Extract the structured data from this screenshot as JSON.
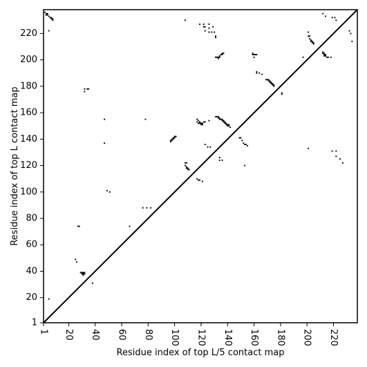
{
  "chart_data": {
    "type": "scatter",
    "title": "",
    "xlabel": "Residue index of top L/5 contact map",
    "ylabel": "Residue index of top L contact map",
    "xlim": [
      1,
      238
    ],
    "ylim": [
      1,
      238
    ],
    "x_ticks": [
      1,
      20,
      40,
      60,
      80,
      100,
      120,
      140,
      160,
      180,
      200,
      220
    ],
    "y_ticks": [
      1,
      20,
      40,
      60,
      80,
      100,
      120,
      140,
      160,
      180,
      200,
      220
    ],
    "grid": false,
    "diagonal_line": true,
    "marker_color": "#000000",
    "points": [
      [
        2,
        236
      ],
      [
        3,
        235
      ],
      [
        4,
        235
      ],
      [
        3,
        234
      ],
      [
        4,
        234
      ],
      [
        5,
        233
      ],
      [
        6,
        232
      ],
      [
        7,
        232
      ],
      [
        7,
        231
      ],
      [
        8,
        231
      ],
      [
        8,
        230
      ],
      [
        5,
        222
      ],
      [
        5,
        19
      ],
      [
        25,
        49
      ],
      [
        26,
        47
      ],
      [
        27,
        74
      ],
      [
        28,
        74
      ],
      [
        29,
        39
      ],
      [
        30,
        39
      ],
      [
        30,
        38
      ],
      [
        31,
        39
      ],
      [
        31,
        38
      ],
      [
        32,
        38
      ],
      [
        31,
        37
      ],
      [
        32,
        39
      ],
      [
        32,
        178
      ],
      [
        32,
        176
      ],
      [
        34,
        178
      ],
      [
        35,
        178
      ],
      [
        38,
        31
      ],
      [
        47,
        155
      ],
      [
        47,
        137
      ],
      [
        49,
        101
      ],
      [
        51,
        100
      ],
      [
        66,
        74
      ],
      [
        76,
        88
      ],
      [
        79,
        88
      ],
      [
        78,
        155
      ],
      [
        82,
        88
      ],
      [
        97,
        139
      ],
      [
        98,
        139
      ],
      [
        98,
        140
      ],
      [
        99,
        140
      ],
      [
        99,
        141
      ],
      [
        100,
        141
      ],
      [
        100,
        142
      ],
      [
        101,
        142
      ],
      [
        97,
        138
      ],
      [
        108,
        122
      ],
      [
        109,
        122
      ],
      [
        108,
        120
      ],
      [
        109,
        119
      ],
      [
        109,
        118
      ],
      [
        110,
        118
      ],
      [
        110,
        117
      ],
      [
        111,
        117
      ],
      [
        108,
        230
      ],
      [
        117,
        155
      ],
      [
        117,
        153
      ],
      [
        118,
        154
      ],
      [
        118,
        152
      ],
      [
        119,
        153
      ],
      [
        119,
        152
      ],
      [
        120,
        152
      ],
      [
        120,
        151
      ],
      [
        121,
        152
      ],
      [
        121,
        151
      ],
      [
        117,
        110
      ],
      [
        118,
        109
      ],
      [
        119,
        109
      ],
      [
        121,
        108
      ],
      [
        119,
        227
      ],
      [
        122,
        227
      ],
      [
        122,
        225
      ],
      [
        123,
        225
      ],
      [
        122,
        153
      ],
      [
        123,
        153
      ],
      [
        123,
        136
      ],
      [
        125,
        134
      ],
      [
        127,
        134
      ],
      [
        123,
        222
      ],
      [
        126,
        227
      ],
      [
        126,
        224
      ],
      [
        126,
        221
      ],
      [
        126,
        154
      ],
      [
        128,
        221
      ],
      [
        129,
        225
      ],
      [
        130,
        221
      ],
      [
        131,
        218
      ],
      [
        131,
        217
      ],
      [
        131,
        202
      ],
      [
        132,
        202
      ],
      [
        133,
        201
      ],
      [
        133,
        202
      ],
      [
        134,
        202
      ],
      [
        134,
        203
      ],
      [
        135,
        204
      ],
      [
        136,
        204
      ],
      [
        136,
        205
      ],
      [
        137,
        205
      ],
      [
        131,
        157
      ],
      [
        132,
        157
      ],
      [
        133,
        156
      ],
      [
        133,
        157
      ],
      [
        134,
        156
      ],
      [
        134,
        155
      ],
      [
        135,
        155
      ],
      [
        136,
        155
      ],
      [
        136,
        154
      ],
      [
        137,
        154
      ],
      [
        137,
        153
      ],
      [
        138,
        153
      ],
      [
        138,
        152
      ],
      [
        139,
        152
      ],
      [
        139,
        151
      ],
      [
        140,
        151
      ],
      [
        141,
        151
      ],
      [
        140,
        150
      ],
      [
        141,
        150
      ],
      [
        142,
        149
      ],
      [
        134,
        126
      ],
      [
        134,
        124
      ],
      [
        136,
        124
      ],
      [
        149,
        141
      ],
      [
        150,
        141
      ],
      [
        151,
        139
      ],
      [
        152,
        137
      ],
      [
        153,
        136
      ],
      [
        154,
        136
      ],
      [
        155,
        135
      ],
      [
        153,
        120
      ],
      [
        159,
        205
      ],
      [
        159,
        204
      ],
      [
        160,
        204
      ],
      [
        161,
        204
      ],
      [
        162,
        204
      ],
      [
        160,
        202
      ],
      [
        162,
        190
      ],
      [
        162,
        191
      ],
      [
        164,
        190
      ],
      [
        166,
        189
      ],
      [
        169,
        185
      ],
      [
        170,
        185
      ],
      [
        171,
        185
      ],
      [
        171,
        184
      ],
      [
        172,
        184
      ],
      [
        172,
        183
      ],
      [
        173,
        183
      ],
      [
        173,
        182
      ],
      [
        174,
        182
      ],
      [
        174,
        181
      ],
      [
        175,
        181
      ],
      [
        175,
        180
      ],
      [
        181,
        175
      ],
      [
        181,
        174
      ],
      [
        197,
        202
      ],
      [
        201,
        133
      ],
      [
        201,
        221
      ],
      [
        201,
        218
      ],
      [
        202,
        218
      ],
      [
        202,
        216
      ],
      [
        203,
        215
      ],
      [
        203,
        214
      ],
      [
        204,
        214
      ],
      [
        204,
        213
      ],
      [
        205,
        213
      ],
      [
        205,
        212
      ],
      [
        212,
        206
      ],
      [
        212,
        205
      ],
      [
        213,
        205
      ],
      [
        213,
        204
      ],
      [
        214,
        204
      ],
      [
        213,
        203
      ],
      [
        214,
        203
      ],
      [
        215,
        202
      ],
      [
        216,
        202
      ],
      [
        218,
        202
      ],
      [
        212,
        235
      ],
      [
        214,
        233
      ],
      [
        219,
        232
      ],
      [
        221,
        232
      ],
      [
        222,
        230
      ],
      [
        219,
        131
      ],
      [
        222,
        131
      ],
      [
        222,
        127
      ],
      [
        225,
        125
      ],
      [
        227,
        122
      ],
      [
        232,
        222
      ],
      [
        233,
        220
      ],
      [
        234,
        214
      ]
    ]
  }
}
